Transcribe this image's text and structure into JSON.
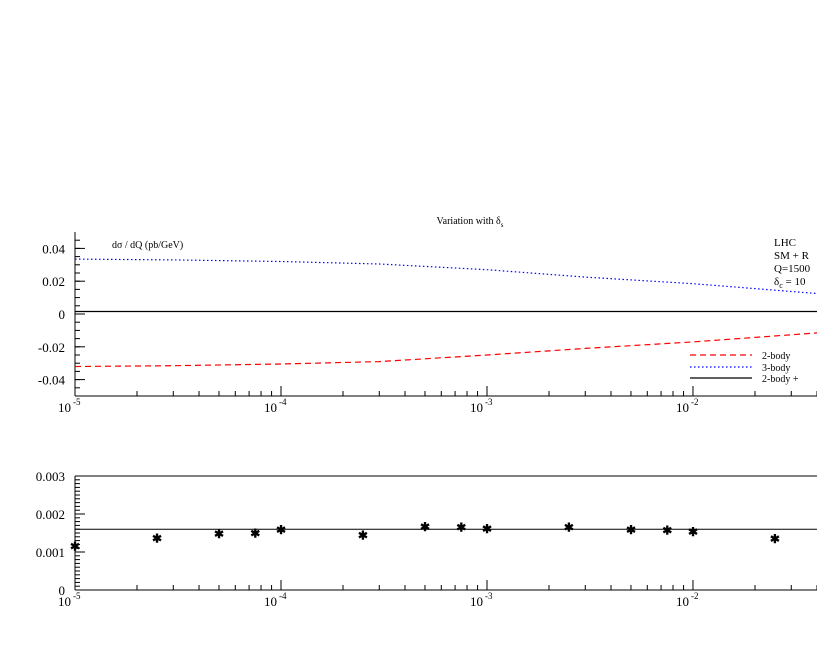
{
  "chart_data": [
    {
      "type": "line",
      "title": "Variation with δs",
      "ylabel": "dσ / dQ (pb/GeV)",
      "x_scale": "log",
      "xlim": [
        1e-05,
        0.04
      ],
      "ylim": [
        -0.05,
        0.05
      ],
      "y_ticks": [
        "0.04",
        "0.02",
        "0",
        "-0.02",
        "-0.04"
      ],
      "x_tick_labels": [
        {
          "base": "10",
          "exp": "-5"
        },
        {
          "base": "10",
          "exp": "-4"
        },
        {
          "base": "10",
          "exp": "-3"
        },
        {
          "base": "10",
          "exp": "-2"
        }
      ],
      "info_lines": [
        "LHC",
        "SM + R",
        "Q=1500",
        "δc = 10"
      ],
      "legend_position": "bottom-right",
      "series": [
        {
          "name": "2-body",
          "color": "#ff0000",
          "style": "dashed",
          "x": [
            1e-05,
            3e-05,
            0.0001,
            0.0003,
            0.001,
            0.003,
            0.01,
            0.04
          ],
          "y": [
            -0.032,
            -0.0315,
            -0.0305,
            -0.029,
            -0.025,
            -0.021,
            -0.017,
            -0.0115
          ]
        },
        {
          "name": "3-body",
          "color": "#0000ff",
          "style": "dotted",
          "x": [
            1e-05,
            3e-05,
            0.0001,
            0.0003,
            0.001,
            0.003,
            0.01,
            0.04
          ],
          "y": [
            0.0335,
            0.033,
            0.032,
            0.0305,
            0.027,
            0.0225,
            0.0185,
            0.0125
          ]
        },
        {
          "name": "2-body +",
          "color": "#000000",
          "style": "solid",
          "x": [
            1e-05,
            0.04
          ],
          "y": [
            0.0015,
            0.0015
          ]
        }
      ]
    },
    {
      "type": "scatter",
      "x_scale": "log",
      "xlim": [
        1e-05,
        0.04
      ],
      "ylim": [
        0,
        0.003
      ],
      "y_ticks": [
        "0.003",
        "0.002",
        "0.001",
        "0"
      ],
      "x_tick_labels": [
        {
          "base": "10",
          "exp": "-5"
        },
        {
          "base": "10",
          "exp": "-4"
        },
        {
          "base": "10",
          "exp": "-3"
        },
        {
          "base": "10",
          "exp": "-2"
        }
      ],
      "reference_line": 0.0016,
      "points": {
        "x": [
          1e-05,
          2.5e-05,
          5e-05,
          7.5e-05,
          0.0001,
          0.00025,
          0.0005,
          0.00075,
          0.001,
          0.0025,
          0.005,
          0.0075,
          0.01,
          0.025
        ],
        "y": [
          0.00115,
          0.00135,
          0.00147,
          0.00149,
          0.00158,
          0.00144,
          0.00166,
          0.00164,
          0.00161,
          0.00164,
          0.00158,
          0.00156,
          0.00153,
          0.00134
        ]
      }
    }
  ]
}
